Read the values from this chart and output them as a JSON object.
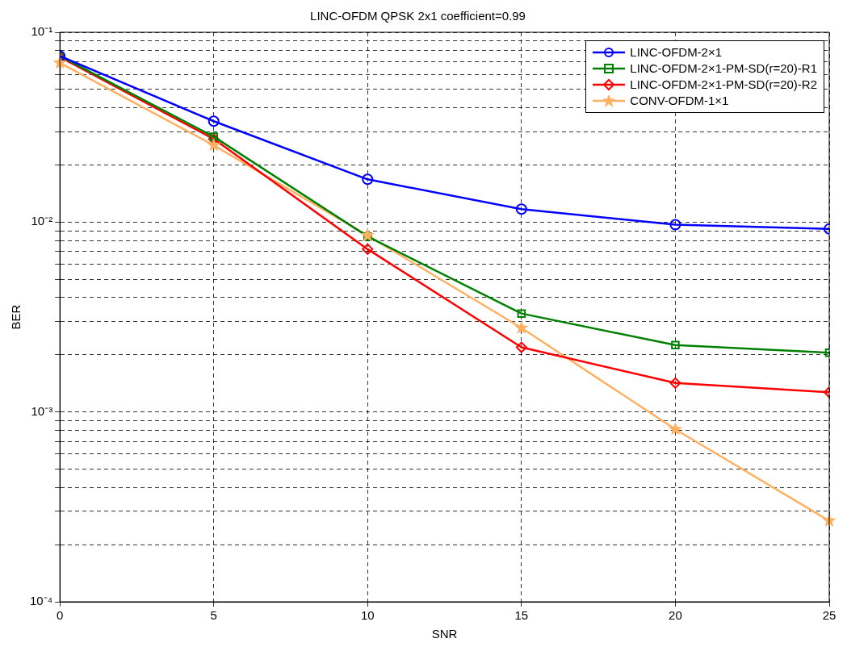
{
  "chart_data": {
    "type": "line",
    "title": "LINC-OFDM QPSK 2x1 coefficient=0.99",
    "xlabel": "SNR",
    "ylabel": "BER",
    "log": "y",
    "grid": true,
    "line_style": "solid",
    "legend": "top right",
    "x": [
      0,
      5,
      10,
      15,
      20,
      25
    ],
    "xlim": [
      0,
      25
    ],
    "xticks": [
      0,
      5,
      10,
      15,
      20,
      25
    ],
    "ylim": [
      0.0001,
      0.1
    ],
    "yticks": [
      {
        "value": 0.0001,
        "label": "10⁻⁴"
      },
      {
        "value": 0.0002,
        "label": null
      },
      {
        "value": 0.0003,
        "label": null
      },
      {
        "value": 0.0004,
        "label": null
      },
      {
        "value": 0.0005,
        "label": null
      },
      {
        "value": 0.0006,
        "label": null
      },
      {
        "value": 0.0007,
        "label": null
      },
      {
        "value": 0.0008,
        "label": null
      },
      {
        "value": 0.0009,
        "label": null
      },
      {
        "value": 0.001,
        "label": "10⁻³"
      },
      {
        "value": 0.002,
        "label": null
      },
      {
        "value": 0.003,
        "label": null
      },
      {
        "value": 0.004,
        "label": null
      },
      {
        "value": 0.005,
        "label": null
      },
      {
        "value": 0.006,
        "label": null
      },
      {
        "value": 0.007,
        "label": null
      },
      {
        "value": 0.008,
        "label": null
      },
      {
        "value": 0.009,
        "label": null
      },
      {
        "value": 0.01,
        "label": "10⁻²"
      },
      {
        "value": 0.02,
        "label": null
      },
      {
        "value": 0.03,
        "label": null
      },
      {
        "value": 0.04,
        "label": null
      },
      {
        "value": 0.05,
        "label": null
      },
      {
        "value": 0.06,
        "label": null
      },
      {
        "value": 0.07,
        "label": null
      },
      {
        "value": 0.08,
        "label": null
      },
      {
        "value": 0.09,
        "label": null
      },
      {
        "value": 0.1,
        "label": "10⁻¹"
      }
    ],
    "series": [
      {
        "name": "LINC-OFDM-2×1",
        "color": "#0000ff",
        "marker": "circle",
        "values": [
          0.075,
          0.034,
          0.0168,
          0.0117,
          0.0097,
          0.0092
        ]
      },
      {
        "name": "LINC-OFDM-2×1-PM-SD(r=20)-R1",
        "color": "#008000",
        "marker": "square",
        "values": [
          0.075,
          0.0282,
          0.0084,
          0.0033,
          0.00225,
          0.00205
        ]
      },
      {
        "name": "LINC-OFDM-2×1-PM-SD(r=20)-R2",
        "color": "#ff0000",
        "marker": "diamond",
        "values": [
          0.074,
          0.0274,
          0.0072,
          0.00219,
          0.00142,
          0.00127
        ]
      },
      {
        "name": "CONV-OFDM-1×1",
        "color": "#ffb060",
        "marker": "star",
        "values": [
          0.069,
          0.0254,
          0.0085,
          0.00277,
          0.00081,
          0.000267
        ]
      }
    ]
  }
}
